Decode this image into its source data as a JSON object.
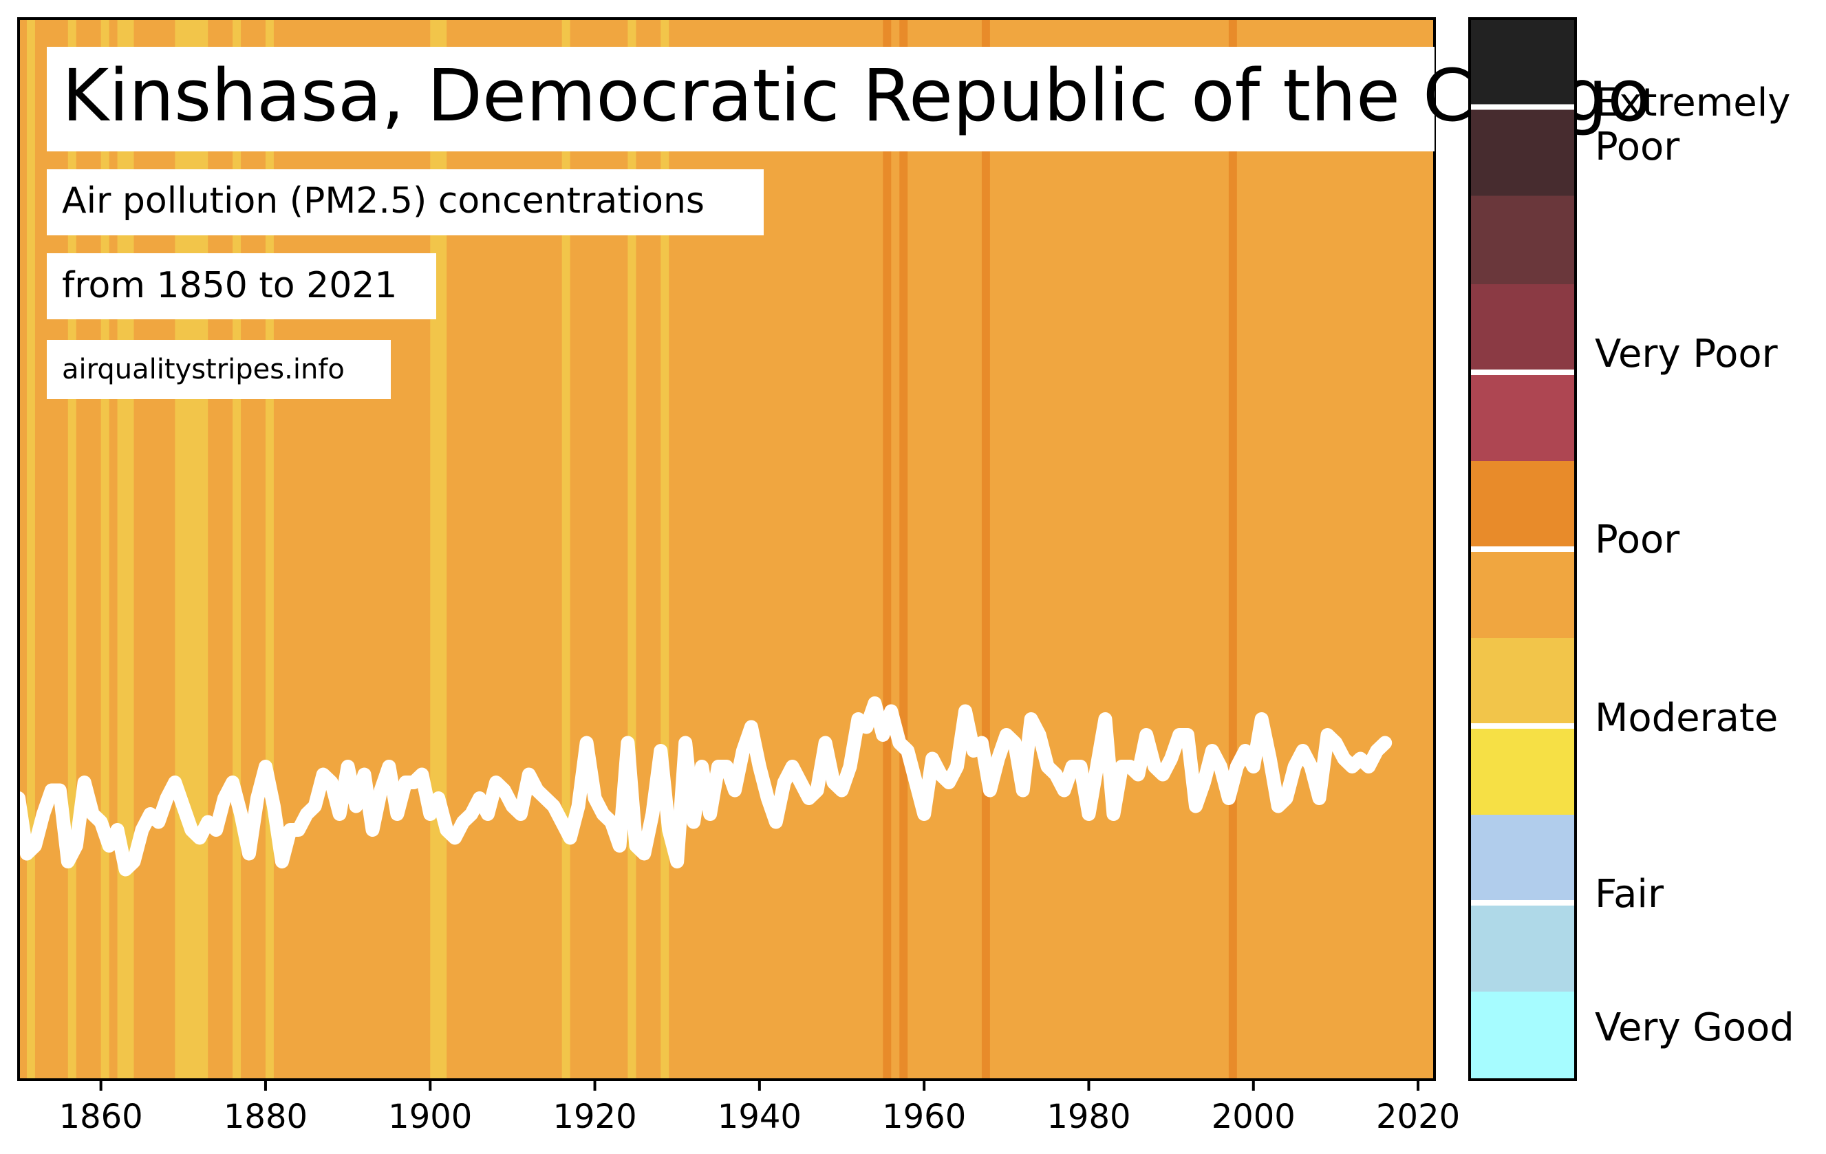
{
  "chart_data": {
    "type": "line",
    "title": "Kinshasa, Democratic Republic of the Congo",
    "subtitle_1": "Air pollution (PM2.5) concentrations",
    "subtitle_2": "from 1850 to 2021",
    "source": "airqualitystripes.info",
    "xlim": [
      1850,
      2022
    ],
    "x_ticks": [
      "1860",
      "1880",
      "1900",
      "1920",
      "1940",
      "1960",
      "1980",
      "2000",
      "2020"
    ],
    "grid": false,
    "stripe_colors": {
      "moderate": "#f2c54a",
      "poor": "#f0a640",
      "poor_high": "#e88b2a"
    },
    "stripes": [
      {
        "from": 1851,
        "to": 1852,
        "level": "moderate"
      },
      {
        "from": 1856,
        "to": 1857,
        "level": "moderate"
      },
      {
        "from": 1860,
        "to": 1861,
        "level": "moderate"
      },
      {
        "from": 1862,
        "to": 1864,
        "level": "moderate"
      },
      {
        "from": 1869,
        "to": 1873,
        "level": "moderate"
      },
      {
        "from": 1876,
        "to": 1877,
        "level": "moderate"
      },
      {
        "from": 1880,
        "to": 1881,
        "level": "moderate"
      },
      {
        "from": 1900,
        "to": 1902,
        "level": "moderate"
      },
      {
        "from": 1916,
        "to": 1917,
        "level": "moderate"
      },
      {
        "from": 1924,
        "to": 1925,
        "level": "moderate"
      },
      {
        "from": 1928,
        "to": 1929,
        "level": "moderate"
      },
      {
        "from": 1955,
        "to": 1956,
        "level": "poor_high"
      },
      {
        "from": 1957,
        "to": 1958,
        "level": "poor_high"
      },
      {
        "from": 1967,
        "to": 1968,
        "level": "poor_high"
      },
      {
        "from": 1997,
        "to": 1998,
        "level": "poor_high"
      }
    ],
    "series": [
      {
        "color": "#ffffff",
        "x_start": 1850,
        "values": [
          0.0,
          -0.35,
          -0.3,
          -0.1,
          0.05,
          0.05,
          -0.4,
          -0.3,
          0.1,
          -0.1,
          -0.15,
          -0.3,
          -0.2,
          -0.45,
          -0.4,
          -0.2,
          -0.1,
          -0.15,
          0.0,
          0.1,
          -0.05,
          -0.2,
          -0.25,
          -0.15,
          -0.2,
          0.0,
          0.1,
          -0.1,
          -0.35,
          0.0,
          0.2,
          -0.05,
          -0.4,
          -0.2,
          -0.2,
          -0.1,
          -0.05,
          0.15,
          0.1,
          -0.1,
          0.2,
          -0.05,
          0.15,
          -0.2,
          0.05,
          0.2,
          -0.1,
          0.1,
          0.1,
          0.15,
          -0.1,
          0.0,
          -0.2,
          -0.25,
          -0.15,
          -0.1,
          0.0,
          -0.1,
          0.1,
          0.05,
          -0.05,
          -0.1,
          0.15,
          0.05,
          0.0,
          -0.05,
          -0.15,
          -0.25,
          -0.05,
          0.35,
          0.0,
          -0.1,
          -0.15,
          -0.3,
          0.35,
          -0.3,
          -0.35,
          -0.1,
          0.3,
          -0.2,
          -0.4,
          0.35,
          -0.15,
          0.2,
          -0.1,
          0.2,
          0.2,
          0.05,
          0.3,
          0.45,
          0.2,
          0.0,
          -0.15,
          0.1,
          0.2,
          0.1,
          0.0,
          0.05,
          0.35,
          0.1,
          0.05,
          0.2,
          0.5,
          0.45,
          0.6,
          0.4,
          0.55,
          0.35,
          0.3,
          0.1,
          -0.1,
          0.25,
          0.15,
          0.1,
          0.2,
          0.55,
          0.3,
          0.35,
          0.05,
          0.25,
          0.4,
          0.35,
          0.05,
          0.5,
          0.4,
          0.2,
          0.15,
          0.05,
          0.2,
          0.2,
          -0.1,
          0.2,
          0.5,
          -0.1,
          0.2,
          0.2,
          0.15,
          0.4,
          0.2,
          0.15,
          0.25,
          0.4,
          0.4,
          -0.05,
          0.1,
          0.3,
          0.2,
          0.0,
          0.2,
          0.3,
          0.2,
          0.5,
          0.25,
          -0.05,
          0.0,
          0.2,
          0.3,
          0.2,
          0.0,
          0.4,
          0.35,
          0.25,
          0.2,
          0.25,
          0.2,
          0.3,
          0.35
        ]
      }
    ],
    "colorbar": {
      "labels": [
        "Extremely\nPoor",
        "Very Poor",
        "Poor",
        "Moderate",
        "Fair",
        "Very Good"
      ],
      "colors": [
        "#a6fcff",
        "#afd9e8",
        "#b1cdec",
        "#f6e045",
        "#f2c54a",
        "#f0a640",
        "#e88b2a",
        "#ae4652",
        "#8b3a44",
        "#6a373b",
        "#472c2f",
        "#222222"
      ],
      "separator_after_segment": [
        1,
        3,
        5,
        7,
        10
      ]
    }
  }
}
